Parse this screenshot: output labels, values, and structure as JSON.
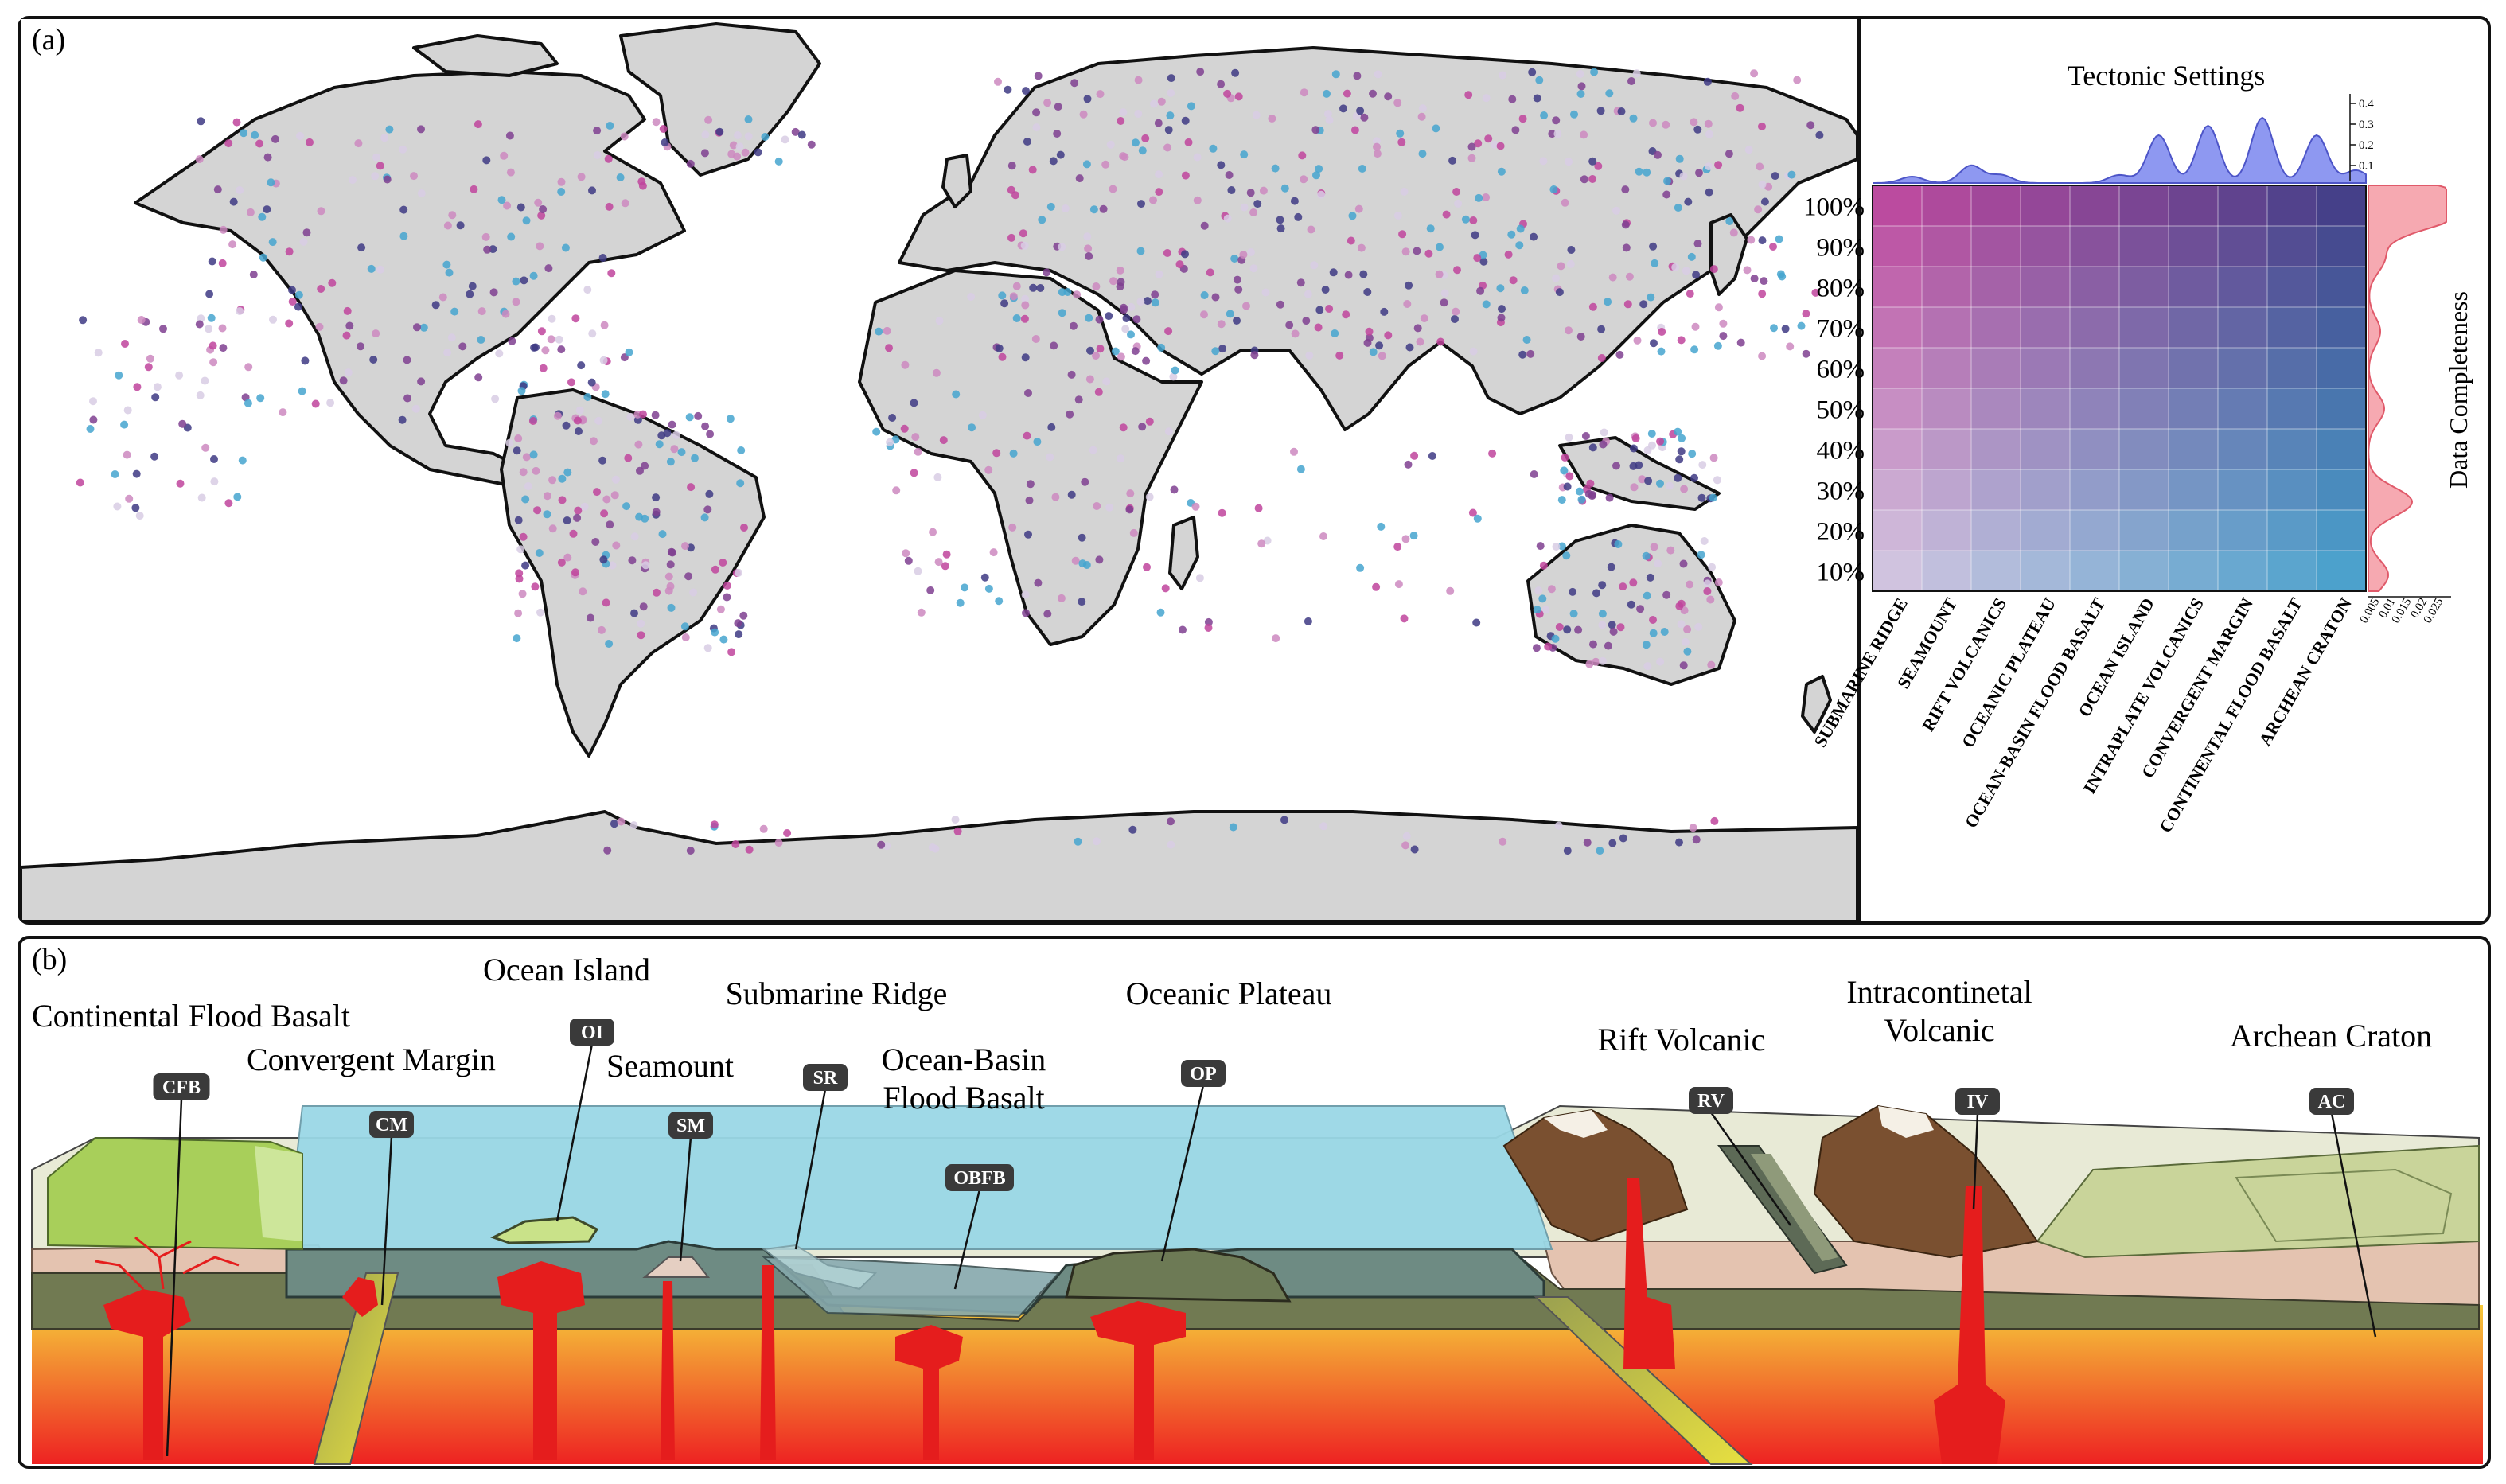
{
  "panel_a": {
    "tag": "(a)",
    "heatmap": {
      "title": "Tectonic Settings",
      "right_axis_label": "Data Completeness",
      "y_tick_labels": [
        "100%",
        "90%",
        "80%",
        "70%",
        "60%",
        "50%",
        "40%",
        "30%",
        "20%",
        "10%"
      ],
      "x_tick_labels": [
        "SUBMARINE RIDGE",
        "SEAMOUNT",
        "RIFT VOLCANICS",
        "OCEANIC PLATEAU",
        "OCEAN-BASIN FLOOD BASALT",
        "OCEAN ISLAND",
        "INTRAPLATE VOLCANICS",
        "CONVERGENT MARGIN",
        "CONTINENTAL FLOOD BASALT",
        "ARCHEAN CRATON"
      ],
      "top_density_ticks": [
        "0.4",
        "0.3",
        "0.2",
        "0.1"
      ],
      "right_density_ticks": [
        "0.005",
        "0.01",
        "0.015",
        "0.02",
        "0.025"
      ],
      "colors": {
        "top_left": "#c0449c",
        "top_right": "#3e3a84",
        "bottom_left": "#d8cce4",
        "bottom_right": "#45a4cf",
        "top_density_fill": "#7a86ee",
        "right_density_fill": "#f5a0a8",
        "land": "#d4d4d4",
        "ocean": "#ffffff"
      }
    }
  },
  "panel_b": {
    "tag": "(b)",
    "settings": [
      {
        "name": "Continental Flood Basalt",
        "code": "CFB"
      },
      {
        "name": "Convergent Margin",
        "code": "CM"
      },
      {
        "name": "Ocean Island",
        "code": "OI"
      },
      {
        "name": "Seamount",
        "code": "SM"
      },
      {
        "name": "Submarine Ridge",
        "code": "SR"
      },
      {
        "name": "Ocean-Basin",
        "name_line2": "Flood Basalt",
        "code": "OBFB"
      },
      {
        "name": "Oceanic Plateau",
        "code": "OP"
      },
      {
        "name": "Rift Volcanic",
        "code": "RV"
      },
      {
        "name": "Intracontinetal",
        "name_line2": "Volcanic",
        "code": "IV"
      },
      {
        "name": "Archean Craton",
        "code": "AC"
      }
    ],
    "colors": {
      "sea": "#9ad8e6",
      "mantle_top": "#f5c93a",
      "mantle_bottom": "#ee2222",
      "crust": "#e4c3b0",
      "lithosphere": "#717a52",
      "magma": "#e51d1d",
      "craton": "#c9d49a",
      "mountain": "#7a5030"
    }
  }
}
